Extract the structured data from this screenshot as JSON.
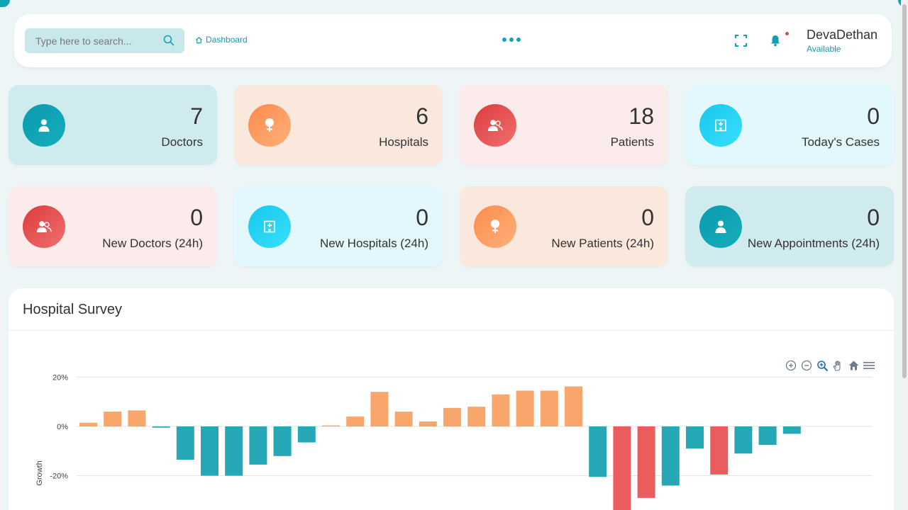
{
  "header": {
    "search": {
      "placeholder": "Type here to search...",
      "value": ""
    },
    "breadcrumb": {
      "label": "Dashboard",
      "icon": "home-icon"
    },
    "user": {
      "name": "DevaDethan",
      "status": "Available"
    }
  },
  "stats": [
    {
      "value": "7",
      "label": "Doctors",
      "icon": "doctor-icon"
    },
    {
      "value": "6",
      "label": "Hospitals",
      "icon": "female-icon"
    },
    {
      "value": "18",
      "label": "Patients",
      "icon": "users-icon"
    },
    {
      "value": "0",
      "label": "Today's Cases",
      "icon": "hospital-icon"
    },
    {
      "value": "0",
      "label": "New Doctors (24h)",
      "icon": "users-icon"
    },
    {
      "value": "0",
      "label": "New Hospitals (24h)",
      "icon": "hospital-icon"
    },
    {
      "value": "0",
      "label": "New Patients (24h)",
      "icon": "female-icon"
    },
    {
      "value": "0",
      "label": "New Appointments (24h)",
      "icon": "doctor-icon"
    }
  ],
  "survey": {
    "title": "Hospital Survey"
  },
  "colors": {
    "accent": "#10a5b6",
    "positive": "#f9a66c",
    "negative": "#26a7b6",
    "strong_negative": "#eb5c5c"
  },
  "chart_data": {
    "type": "bar",
    "title": "Hospital Survey",
    "xlabel": "",
    "ylabel": "Growth",
    "yticks": [
      "20%",
      "0%",
      "-20%"
    ],
    "ylim": [
      -35,
      20
    ],
    "values": [
      1.5,
      6,
      6.5,
      -0.5,
      -13.5,
      -20,
      -20,
      -15.5,
      -12,
      -6.5,
      0.4,
      4,
      14,
      6,
      2,
      7.5,
      8,
      13,
      14.5,
      14.5,
      16.2,
      -20.5,
      -34,
      -29,
      -24,
      -9,
      -19.5,
      -11,
      -7.5,
      -3
    ],
    "strong_negative_threshold": -19.5
  }
}
